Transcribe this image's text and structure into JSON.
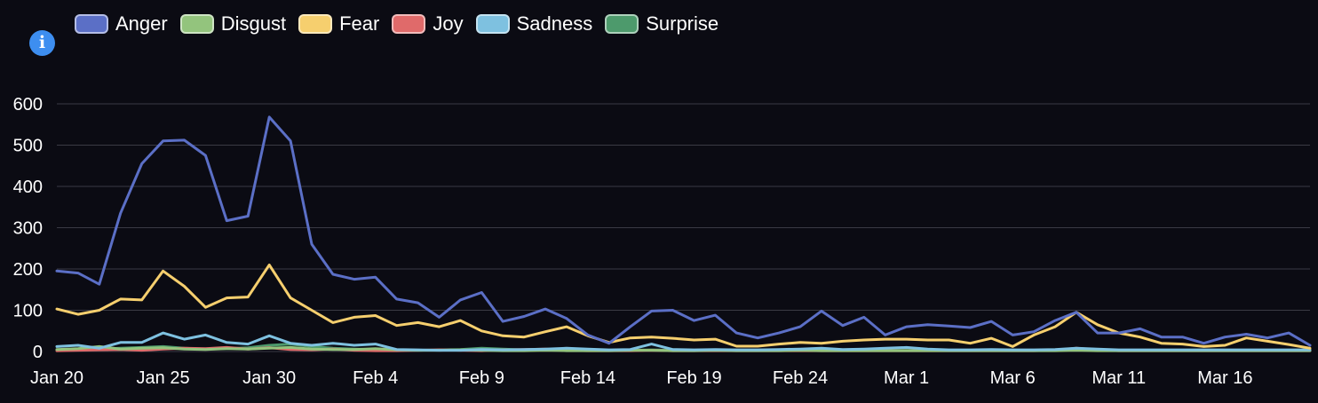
{
  "legend_colors": {
    "Anger": "#5b6fc6",
    "Disgust": "#93c47d",
    "Fear": "#f6cf6e",
    "Joy": "#e06a6a",
    "Sadness": "#7ec1e0",
    "Surprise": "#4d9a6c"
  },
  "info_glyph": "i",
  "chart_data": {
    "type": "line",
    "x_ticks": [
      "Jan 20",
      "Jan 25",
      "Jan 30",
      "Feb 4",
      "Feb 9",
      "Feb 14",
      "Feb 19",
      "Feb 24",
      "Mar 1",
      "Mar 6",
      "Mar 11",
      "Mar 16"
    ],
    "y_ticks": [
      0,
      100,
      200,
      300,
      400,
      500,
      600
    ],
    "ylim": [
      0,
      600
    ],
    "x_start_date": "Jan 20",
    "grid": true,
    "legend_position": "top-left",
    "series": [
      {
        "name": "Anger",
        "color": "#5b6fc6",
        "values": [
          195,
          190,
          163,
          335,
          455,
          510,
          512,
          475,
          317,
          328,
          568,
          510,
          260,
          187,
          175,
          180,
          127,
          118,
          83,
          125,
          143,
          73,
          85,
          103,
          80,
          40,
          20,
          60,
          98,
          100,
          75,
          88,
          45,
          33,
          45,
          60,
          98,
          63,
          83,
          40,
          60,
          65,
          62,
          58,
          73,
          40,
          48,
          75,
          95,
          45,
          45,
          55,
          35,
          35,
          20,
          35,
          42,
          33,
          45,
          15
        ]
      },
      {
        "name": "Disgust",
        "color": "#93c47d",
        "values": [
          5,
          7,
          12,
          6,
          8,
          9,
          6,
          5,
          7,
          6,
          8,
          10,
          6,
          5,
          5,
          7,
          4,
          3,
          3,
          4,
          3,
          2,
          2,
          3,
          2,
          2,
          2,
          3,
          3,
          2,
          2,
          3,
          2,
          2,
          2,
          3,
          2,
          2,
          2,
          2,
          2,
          2,
          2,
          2,
          2,
          2,
          2,
          2,
          3,
          2,
          2,
          2,
          2,
          2,
          2,
          2,
          2,
          2,
          2,
          2
        ]
      },
      {
        "name": "Fear",
        "color": "#f6cf6e",
        "values": [
          103,
          90,
          100,
          127,
          125,
          195,
          158,
          107,
          130,
          132,
          210,
          130,
          100,
          70,
          83,
          87,
          63,
          70,
          60,
          75,
          50,
          38,
          35,
          48,
          60,
          38,
          22,
          33,
          35,
          32,
          28,
          30,
          13,
          13,
          18,
          22,
          20,
          25,
          28,
          30,
          30,
          28,
          28,
          20,
          32,
          12,
          40,
          60,
          95,
          65,
          45,
          35,
          20,
          18,
          12,
          15,
          33,
          25,
          17,
          8
        ]
      },
      {
        "name": "Joy",
        "color": "#e06a6a",
        "values": [
          2,
          3,
          4,
          5,
          3,
          6,
          8,
          7,
          10,
          6,
          9,
          5,
          4,
          6,
          3,
          2,
          2,
          3,
          4,
          3,
          2,
          4,
          5,
          6,
          3,
          2,
          2,
          2,
          3,
          2,
          2,
          2,
          2,
          2,
          2,
          2,
          2,
          2,
          2,
          2,
          2,
          2,
          2,
          2,
          2,
          2,
          2,
          3,
          8,
          4,
          2,
          2,
          2,
          2,
          2,
          2,
          2,
          2,
          2,
          2
        ]
      },
      {
        "name": "Sadness",
        "color": "#7ec1e0",
        "values": [
          12,
          15,
          8,
          22,
          22,
          45,
          30,
          40,
          22,
          18,
          38,
          20,
          15,
          20,
          15,
          18,
          5,
          4,
          3,
          3,
          5,
          4,
          5,
          6,
          8,
          6,
          4,
          5,
          18,
          5,
          4,
          5,
          4,
          4,
          5,
          6,
          8,
          5,
          6,
          8,
          10,
          6,
          4,
          4,
          5,
          4,
          4,
          5,
          8,
          6,
          4,
          4,
          4,
          4,
          4,
          4,
          4,
          4,
          4,
          4
        ]
      },
      {
        "name": "Surprise",
        "color": "#4d9a6c",
        "values": [
          4,
          5,
          6,
          8,
          10,
          12,
          8,
          6,
          7,
          9,
          15,
          18,
          12,
          8,
          6,
          5,
          3,
          3,
          4,
          5,
          8,
          6,
          4,
          5,
          4,
          3,
          3,
          3,
          4,
          3,
          3,
          3,
          3,
          3,
          3,
          4,
          3,
          3,
          3,
          3,
          3,
          3,
          3,
          3,
          3,
          3,
          3,
          4,
          5,
          4,
          3,
          3,
          3,
          3,
          3,
          3,
          3,
          3,
          3,
          3
        ]
      }
    ]
  }
}
